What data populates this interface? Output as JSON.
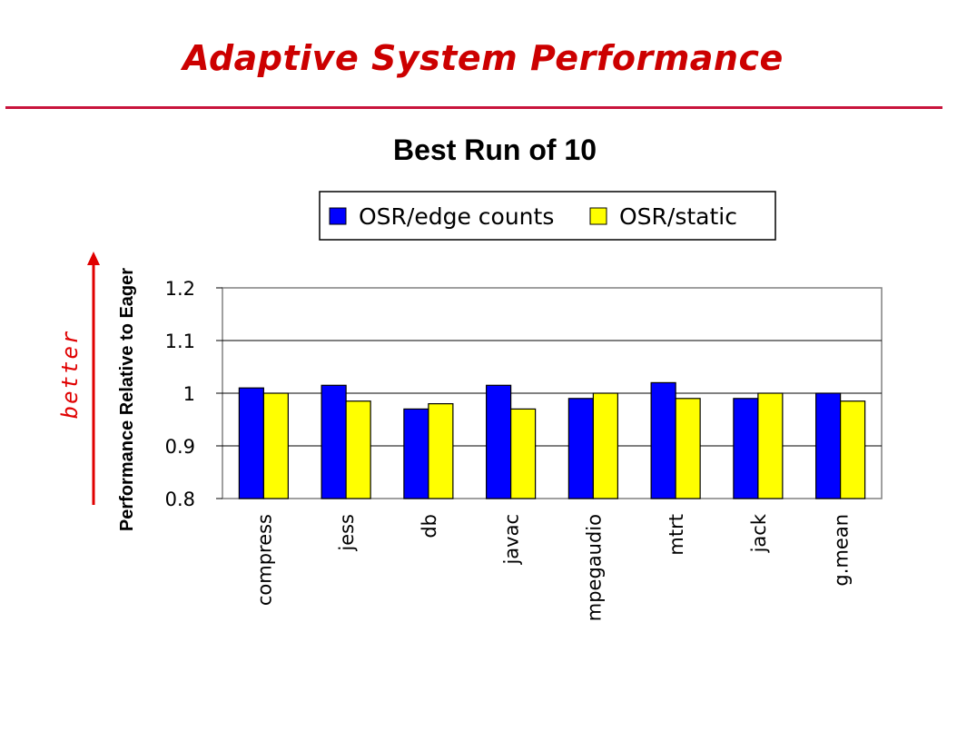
{
  "slide": {
    "title": "Adaptive System Performance"
  },
  "annotation": {
    "better_label": "better"
  },
  "colors": {
    "title": "#cc0000",
    "rule": "#c8143c",
    "arrow": "#e00000"
  },
  "chart_data": {
    "type": "bar",
    "title": "Best Run of 10",
    "ylabel": "Performance Relative to Eager",
    "xlabel": "",
    "categories": [
      "compress",
      "jess",
      "db",
      "javac",
      "mpegaudio",
      "mtrt",
      "jack",
      "g.mean"
    ],
    "series": [
      {
        "name": "OSR/edge counts",
        "color": "#0000ff",
        "values": [
          1.01,
          1.015,
          0.97,
          1.015,
          0.99,
          1.02,
          0.99,
          1.0
        ]
      },
      {
        "name": "OSR/static",
        "color": "#ffff00",
        "values": [
          1.0,
          0.985,
          0.98,
          0.97,
          1.0,
          0.99,
          1.0,
          0.985
        ]
      }
    ],
    "ylim": [
      0.8,
      1.2
    ],
    "yticks": [
      0.8,
      0.9,
      1,
      1.1,
      1.2
    ],
    "ytick_labels": [
      "0.8",
      "0.9",
      "1",
      "1.1",
      "1.2"
    ],
    "grid": true,
    "legend": "top"
  }
}
